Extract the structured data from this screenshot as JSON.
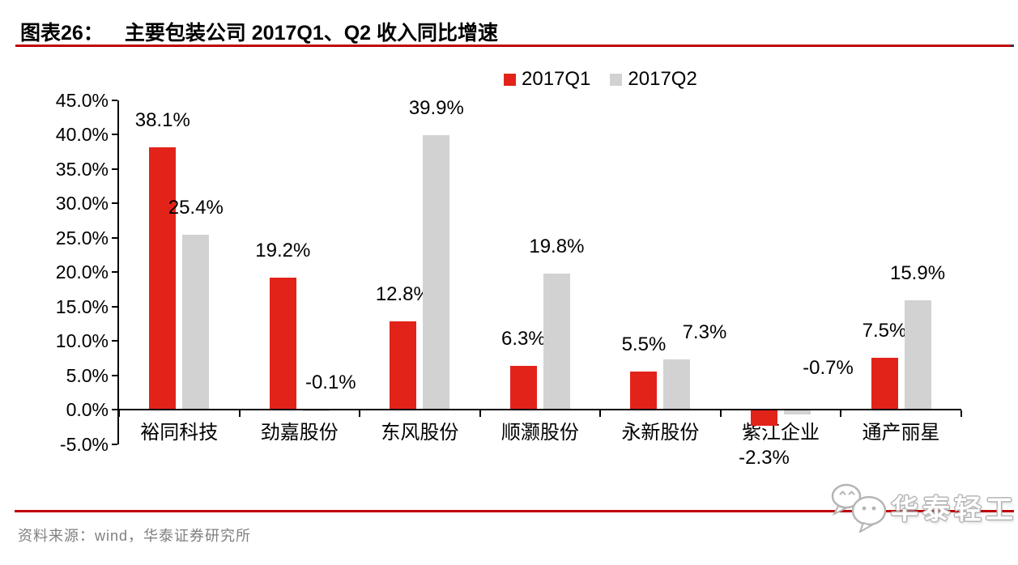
{
  "header": {
    "figure_label": "图表26：",
    "title": "主要包装公司 2017Q1、Q2 收入同比增速"
  },
  "chart_data": {
    "type": "bar",
    "title": "主要包装公司 2017Q1、Q2 收入同比增速",
    "categories": [
      "裕同科技",
      "劲嘉股份",
      "东风股份",
      "顺灏股份",
      "永新股份",
      "紫江企业",
      "通产丽星"
    ],
    "series": [
      {
        "name": "2017Q1",
        "color": "#e2231a",
        "values": [
          38.1,
          19.2,
          12.8,
          6.3,
          5.5,
          -2.3,
          7.5
        ],
        "labels": [
          "38.1%",
          "19.2%",
          "12.8%",
          "6.3%",
          "5.5%",
          "-2.3%",
          "7.5%"
        ]
      },
      {
        "name": "2017Q2",
        "color": "#d2d2d2",
        "values": [
          25.4,
          -0.1,
          39.9,
          19.8,
          7.3,
          -0.7,
          15.9
        ],
        "labels": [
          "25.4%",
          "-0.1%",
          "39.9%",
          "19.8%",
          "7.3%",
          "-0.7%",
          "15.9%"
        ]
      }
    ],
    "ylim": [
      -5,
      45
    ],
    "ytick_step": 5,
    "ytick_labels": [
      "45.0%",
      "40.0%",
      "35.0%",
      "30.0%",
      "25.0%",
      "20.0%",
      "15.0%",
      "10.0%",
      "5.0%",
      "0.0%",
      "-5.0%"
    ],
    "xlabel": "",
    "ylabel": "",
    "grid": false,
    "legend_position": "top",
    "label_overrides": {
      "1,1": {
        "dx": 18
      },
      "1,4": {
        "dx": 34
      },
      "0,5": {
        "place": "below"
      },
      "1,5": {
        "dx": 38,
        "bottom": 468
      }
    }
  },
  "footer": {
    "source": "资料来源：wind，华泰证券研究所"
  },
  "watermark": {
    "text": "华泰轻工",
    "icon": "wechat-chat-bubbles-icon"
  },
  "colors": {
    "rule_red": "#c00000",
    "rule_cap_navy": "#1f3864",
    "bar_red": "#e2231a",
    "bar_gray": "#d2d2d2",
    "axis_black": "#000000",
    "source_gray": "#808080",
    "watermark_gray": "#b5b5b5"
  }
}
